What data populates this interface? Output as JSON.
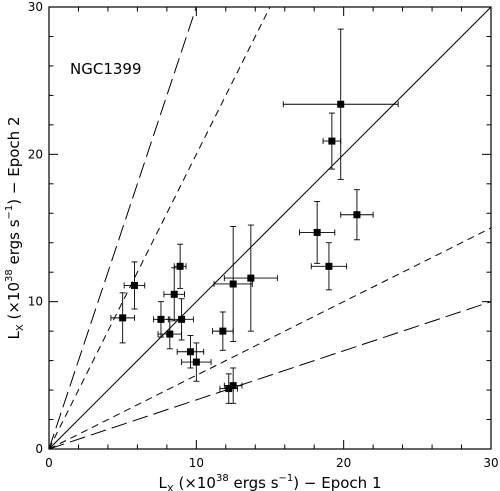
{
  "chart_data": {
    "type": "scatter",
    "annotation": "NGC1399",
    "xlabel": {
      "prefix": "L",
      "sub": "X",
      "mid": " (×10",
      "sup1": "38",
      "mid2": " ergs s",
      "sup2": "−1",
      "suffix": ") − Epoch 1"
    },
    "ylabel": {
      "prefix": "L",
      "sub": "X",
      "mid": " (×10",
      "sup1": "38",
      "mid2": " ergs s",
      "sup2": "−1",
      "suffix": ") − Epoch 2"
    },
    "xlim": [
      0,
      30
    ],
    "ylim": [
      0,
      30
    ],
    "xticks": [
      0,
      10,
      20,
      30
    ],
    "yticks": [
      0,
      10,
      20,
      30
    ],
    "xtick_labels": [
      "0",
      "10",
      "20",
      "30"
    ],
    "ytick_labels": [
      "0",
      "10",
      "20",
      "30"
    ],
    "reference_lines": [
      {
        "slope": 1,
        "style": "solid"
      },
      {
        "slope": 2,
        "style": "short-dash"
      },
      {
        "slope": 0.5,
        "style": "short-dash"
      },
      {
        "slope": 3,
        "style": "long-dash"
      },
      {
        "slope": 0.3333,
        "style": "long-dash"
      }
    ],
    "points": [
      {
        "x": 19.8,
        "y": 23.4,
        "xerr": 3.9,
        "yerr": 5.1
      },
      {
        "x": 19.2,
        "y": 20.9,
        "xerr": 0.6,
        "yerr": 1.9
      },
      {
        "x": 20.9,
        "y": 15.9,
        "xerr": 1.1,
        "yerr": 1.7
      },
      {
        "x": 18.2,
        "y": 14.7,
        "xerr": 1.2,
        "yerr": 2.1
      },
      {
        "x": 19.0,
        "y": 12.4,
        "xerr": 1.2,
        "yerr": 1.6
      },
      {
        "x": 13.7,
        "y": 11.6,
        "xerr": 1.8,
        "yerr": 3.6
      },
      {
        "x": 12.5,
        "y": 11.2,
        "xerr": 1.3,
        "yerr": 3.9
      },
      {
        "x": 8.9,
        "y": 12.4,
        "xerr": 0.4,
        "yerr": 1.5
      },
      {
        "x": 5.8,
        "y": 11.1,
        "xerr": 0.7,
        "yerr": 1.6
      },
      {
        "x": 8.5,
        "y": 10.5,
        "xerr": 0.7,
        "yerr": 1.8
      },
      {
        "x": 5.0,
        "y": 8.9,
        "xerr": 0.8,
        "yerr": 1.7
      },
      {
        "x": 7.6,
        "y": 8.8,
        "xerr": 0.5,
        "yerr": 1.2
      },
      {
        "x": 9.0,
        "y": 8.8,
        "xerr": 0.8,
        "yerr": 1.4
      },
      {
        "x": 8.2,
        "y": 7.8,
        "xerr": 0.8,
        "yerr": 1.0
      },
      {
        "x": 11.8,
        "y": 8.0,
        "xerr": 0.7,
        "yerr": 1.3
      },
      {
        "x": 9.6,
        "y": 6.6,
        "xerr": 0.9,
        "yerr": 1.1
      },
      {
        "x": 10.0,
        "y": 5.9,
        "xerr": 1.0,
        "yerr": 1.3
      },
      {
        "x": 12.2,
        "y": 4.1,
        "xerr": 0.6,
        "yerr": 1.0
      },
      {
        "x": 12.5,
        "y": 4.3,
        "xerr": 0.6,
        "yerr": 1.2
      }
    ]
  }
}
